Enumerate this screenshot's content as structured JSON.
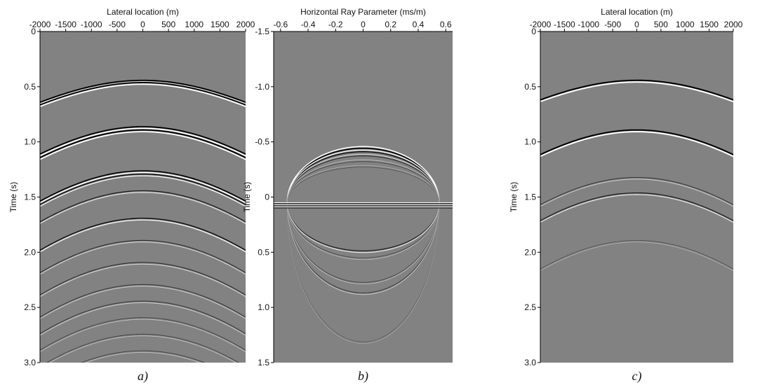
{
  "panels": [
    {
      "xlabel": "Lateral location (m)",
      "ylabel": "Time (s)",
      "xlim": [
        -2000,
        2000
      ],
      "xticks": [
        -2000,
        -1500,
        -1000,
        -500,
        0,
        500,
        1000,
        1500,
        2000
      ],
      "ylim": [
        0,
        3
      ],
      "yticks": [
        0,
        0.5,
        {
          "value": 1,
          "label": "1.0"
        },
        1.5,
        {
          "value": 2,
          "label": "2.0"
        },
        2.5,
        {
          "value": 3,
          "label": "3.0"
        }
      ],
      "caption": "a)"
    },
    {
      "xlabel": "Horizontal Ray Parameter (ms/m)",
      "ylabel": "Time (s)",
      "xlim": [
        -0.65,
        0.65
      ],
      "xticks": [
        -0.6,
        -0.4,
        -0.2,
        0,
        0.2,
        0.4,
        0.6
      ],
      "ylim": [
        -1.5,
        1.5
      ],
      "yticks": [
        -1.5,
        {
          "value": -1,
          "label": "-1.0"
        },
        -0.5,
        0,
        0.5,
        {
          "value": 1,
          "label": "1.0"
        },
        1.5
      ],
      "caption": "b)"
    },
    {
      "xlabel": "Lateral location (m)",
      "ylabel": "Time (s)",
      "xlim": [
        -2000,
        2000
      ],
      "xticks": [
        -2000,
        -1500,
        -1000,
        -500,
        0,
        500,
        1000,
        1500,
        2000
      ],
      "ylim": [
        0,
        3
      ],
      "yticks": [
        0,
        0.5,
        {
          "value": 1,
          "label": "1.0"
        },
        1.5,
        {
          "value": 2,
          "label": "2.0"
        },
        2.5,
        {
          "value": 3,
          "label": "3.0"
        }
      ],
      "caption": "c)"
    }
  ]
}
